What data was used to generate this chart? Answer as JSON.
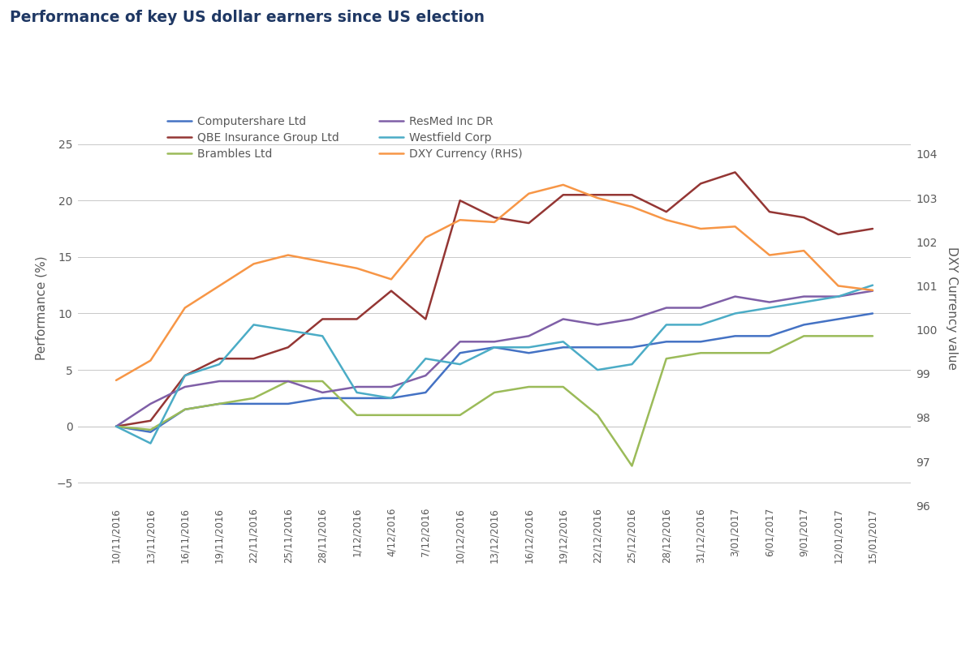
{
  "title": "Performance of key US dollar earners since US election",
  "title_color": "#1F3864",
  "ylabel_left": "Performance (%)",
  "ylabel_right": "DXY Currency value",
  "ylim_left": [
    -7,
    28
  ],
  "ylim_right": [
    96.0,
    105.0
  ],
  "yticks_left": [
    -5,
    0,
    5,
    10,
    15,
    20,
    25
  ],
  "yticks_right": [
    96,
    97,
    98,
    99,
    100,
    101,
    102,
    103,
    104
  ],
  "background_color": "#ffffff",
  "x_labels": [
    "10/11/2016",
    "13/11/2016",
    "16/11/2016",
    "19/11/2016",
    "22/11/2016",
    "25/11/2016",
    "28/11/2016",
    "1/12/2016",
    "4/12/2016",
    "7/12/2016",
    "10/12/2016",
    "13/12/2016",
    "16/12/2016",
    "19/12/2016",
    "22/12/2016",
    "25/12/2016",
    "28/12/2016",
    "31/12/2016",
    "3/01/2017",
    "6/01/2017",
    "9/01/2017",
    "12/01/2017",
    "15/01/2017"
  ],
  "left_series_order": [
    "Computershare Ltd",
    "QBE Insurance Group Ltd",
    "Brambles Ltd",
    "ResMed Inc DR",
    "Westfield Corp"
  ],
  "right_series_order": [
    "DXY Currency (RHS)"
  ],
  "legend_order": [
    "Computershare Ltd",
    "QBE Insurance Group Ltd",
    "Brambles Ltd",
    "ResMed Inc DR",
    "Westfield Corp",
    "DXY Currency (RHS)"
  ],
  "series": {
    "Computershare Ltd": {
      "color": "#4472C4",
      "data": [
        0.0,
        -0.5,
        1.5,
        2.0,
        2.0,
        2.0,
        2.5,
        2.5,
        2.5,
        3.0,
        6.5,
        7.0,
        6.5,
        7.0,
        7.0,
        7.0,
        7.5,
        7.5,
        8.0,
        8.0,
        9.0,
        9.5,
        10.0
      ]
    },
    "QBE Insurance Group Ltd": {
      "color": "#943634",
      "data": [
        0.0,
        0.5,
        4.5,
        6.0,
        6.0,
        7.0,
        9.5,
        9.5,
        12.0,
        9.5,
        20.0,
        18.5,
        18.0,
        20.5,
        20.5,
        20.5,
        19.0,
        21.5,
        22.5,
        19.0,
        18.5,
        17.0,
        17.5
      ]
    },
    "Brambles Ltd": {
      "color": "#9BBB59",
      "data": [
        0.0,
        -0.3,
        1.5,
        2.0,
        2.5,
        4.0,
        4.0,
        1.0,
        1.0,
        1.0,
        1.0,
        3.0,
        3.5,
        3.5,
        1.0,
        -3.5,
        6.0,
        6.5,
        6.5,
        6.5,
        8.0,
        8.0,
        8.0
      ]
    },
    "ResMed Inc DR": {
      "color": "#7F5FA7",
      "data": [
        0.0,
        2.0,
        3.5,
        4.0,
        4.0,
        4.0,
        3.0,
        3.5,
        3.5,
        4.5,
        7.5,
        7.5,
        8.0,
        9.5,
        9.0,
        9.5,
        10.5,
        10.5,
        11.5,
        11.0,
        11.5,
        11.5,
        12.0
      ]
    },
    "Westfield Corp": {
      "color": "#4BACC6",
      "data": [
        0.0,
        -1.5,
        4.5,
        5.5,
        9.0,
        8.5,
        8.0,
        3.0,
        2.5,
        6.0,
        5.5,
        7.0,
        7.0,
        7.5,
        5.0,
        5.5,
        9.0,
        9.0,
        10.0,
        10.5,
        11.0,
        11.5,
        12.5
      ]
    },
    "DXY Currency (RHS)": {
      "color": "#F79646",
      "data": [
        98.85,
        99.3,
        100.5,
        101.0,
        101.5,
        101.7,
        101.55,
        101.4,
        101.15,
        102.1,
        102.5,
        102.45,
        103.1,
        103.3,
        103.0,
        102.8,
        102.5,
        102.3,
        102.35,
        101.7,
        101.8,
        101.0,
        100.9
      ]
    }
  }
}
